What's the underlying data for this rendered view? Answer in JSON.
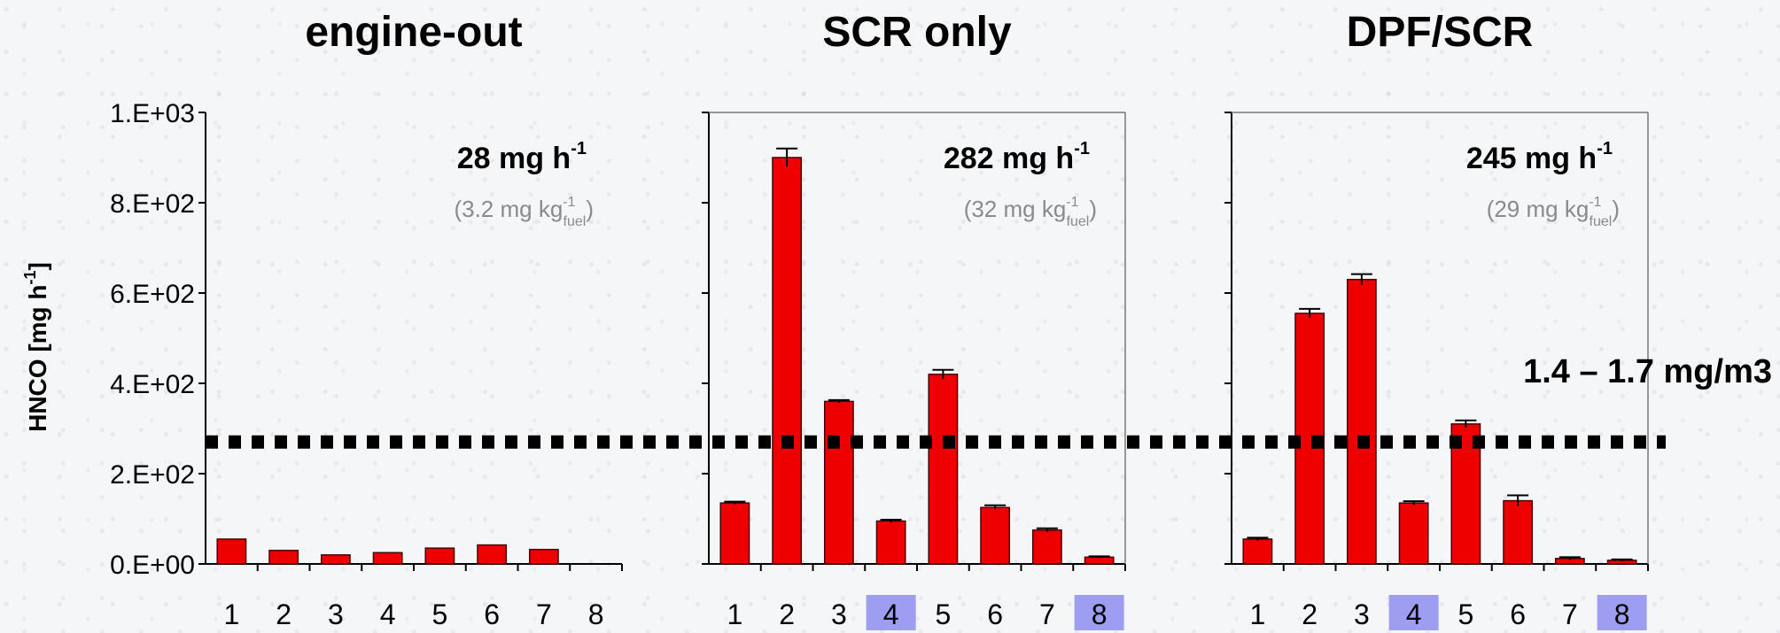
{
  "chart_data": [
    {
      "type": "bar",
      "title": "engine-out",
      "categories": [
        "1",
        "2",
        "3",
        "4",
        "5",
        "6",
        "7",
        "8"
      ],
      "highlighted_categories": [],
      "values": [
        55,
        30,
        20,
        25,
        35,
        42,
        32,
        0
      ],
      "rate_value": "28 mg h",
      "rate_exp": "-1",
      "fuel_main": "(3.2 mg kg",
      "fuel_exp": "-1",
      "fuel_sub": "fuel",
      "fuel_close": ")",
      "ylim": [
        0,
        1000
      ],
      "xlabel": "",
      "ylabel": "HNCO [mg h-1]"
    },
    {
      "type": "bar",
      "title": "SCR only",
      "categories": [
        "1",
        "2",
        "3",
        "4",
        "5",
        "6",
        "7",
        "8"
      ],
      "highlighted_categories": [
        "4",
        "8"
      ],
      "values": [
        135,
        900,
        360,
        95,
        420,
        125,
        75,
        15
      ],
      "errors": [
        3,
        20,
        3,
        3,
        10,
        5,
        4,
        2
      ],
      "rate_value": "282 mg h",
      "rate_exp": "-1",
      "fuel_main": "(32 mg kg",
      "fuel_exp": "-1",
      "fuel_sub": "fuel",
      "fuel_close": ")",
      "ylim": [
        0,
        1000
      ]
    },
    {
      "type": "bar",
      "title": "DPF/SCR",
      "categories": [
        "1",
        "2",
        "3",
        "4",
        "5",
        "6",
        "7",
        "8"
      ],
      "highlighted_categories": [
        "4",
        "8"
      ],
      "values": [
        55,
        555,
        630,
        135,
        310,
        140,
        12,
        8
      ],
      "errors": [
        3,
        10,
        12,
        4,
        8,
        12,
        3,
        2
      ],
      "rate_value": "245 mg h",
      "rate_exp": "-1",
      "fuel_main": "(29 mg kg",
      "fuel_exp": "-1",
      "fuel_sub": "fuel",
      "fuel_close": ")",
      "ylim": [
        0,
        1000
      ]
    }
  ],
  "y_axis": {
    "label_main": "HNCO  [mg h",
    "label_exp": "-1",
    "label_close": "]",
    "ticks": [
      "0.E+00",
      "2.E+02",
      "4.E+02",
      "6.E+02",
      "8.E+02",
      "1.E+03"
    ],
    "tick_values": [
      0,
      200,
      400,
      600,
      800,
      1000
    ]
  },
  "reference_line": {
    "value": 270,
    "label": "1.4 – 1.7 mg/m3"
  },
  "colors": {
    "bar": "#ee0000",
    "bar_stroke": "#4a0000",
    "highlight": "#9d9df2",
    "axis": "#000000",
    "reference": "#000000"
  }
}
